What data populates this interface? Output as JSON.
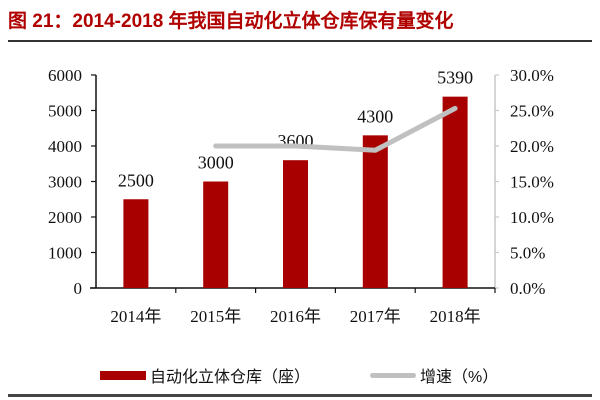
{
  "title": "图 21：2014-2018 年我国自动化立体仓库保有量变化",
  "colors": {
    "bar": "#a80000",
    "line": "#c0c0c0",
    "title": "#b00000"
  },
  "legend": {
    "bar_label": "自动化立体仓库（座）",
    "line_label": "增速（%）"
  },
  "chart_data": {
    "type": "bar",
    "title": "2014-2018 年我国自动化立体仓库保有量变化",
    "categories": [
      "2014年",
      "2015年",
      "2016年",
      "2017年",
      "2018年"
    ],
    "series": [
      {
        "name": "自动化立体仓库（座）",
        "type": "bar",
        "axis": "left",
        "values": [
          2500,
          3000,
          3600,
          4300,
          5390
        ]
      },
      {
        "name": "增速（%）",
        "type": "line",
        "axis": "right",
        "values": [
          null,
          20.0,
          20.0,
          19.4,
          25.3
        ]
      }
    ],
    "left_axis": {
      "ylim": [
        0,
        6000
      ],
      "ticks": [
        "0",
        "1000",
        "2000",
        "3000",
        "4000",
        "5000",
        "6000"
      ]
    },
    "right_axis": {
      "ylim": [
        0,
        30
      ],
      "ticks": [
        "0.0%",
        "5.0%",
        "10.0%",
        "15.0%",
        "20.0%",
        "25.0%",
        "30.0%"
      ]
    },
    "data_labels": [
      "2500",
      "3000",
      "3600",
      "4300",
      "5390"
    ],
    "grid": false,
    "legend_position": "bottom"
  }
}
